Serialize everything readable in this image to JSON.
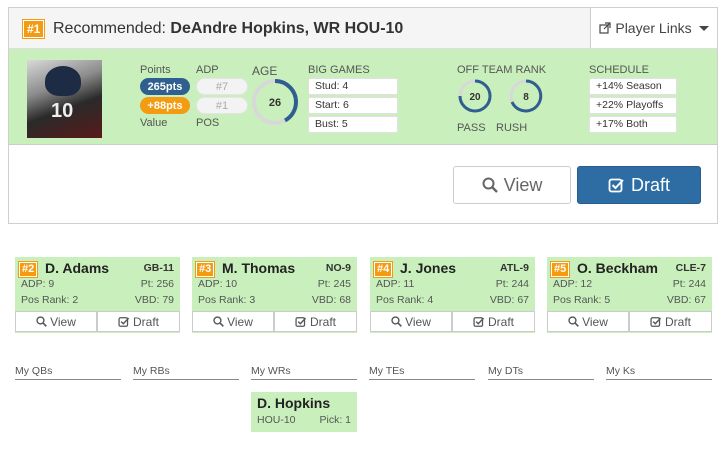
{
  "recommended": {
    "rank": "#1",
    "prefix": "Recommended:",
    "player": "DeAndre Hopkins, WR HOU-10",
    "player_links_label": "Player Links",
    "jersey": "10",
    "labels": {
      "points": "Points",
      "value": "Value",
      "adp": "ADP",
      "pos": "POS",
      "age": "AGE",
      "big_games": "BIG GAMES",
      "off_team_rank": "OFF TEAM RANK",
      "pass": "PASS",
      "rush": "RUSH",
      "schedule": "SCHEDULE"
    },
    "points": "265pts",
    "value": "+88pts",
    "adp": "#7",
    "pos": "#1",
    "age": "26",
    "big_games": [
      "Stud: 4",
      "Start: 6",
      "Bust: 5"
    ],
    "pass_rank": "20",
    "rush_rank": "8",
    "schedule": [
      "+14% Season",
      "+22% Playoffs",
      "+17% Both"
    ],
    "view_label": "View",
    "draft_label": "Draft"
  },
  "suggestions": [
    {
      "rank": "#2",
      "name": "D. Adams",
      "team": "GB-11",
      "adp": "ADP: 9",
      "pt": "Pt: 256",
      "pos_rank": "Pos Rank: 2",
      "vbd": "VBD: 79",
      "view": "View",
      "draft": "Draft"
    },
    {
      "rank": "#3",
      "name": "M. Thomas",
      "team": "NO-9",
      "adp": "ADP: 10",
      "pt": "Pt: 245",
      "pos_rank": "Pos Rank: 3",
      "vbd": "VBD: 68",
      "view": "View",
      "draft": "Draft"
    },
    {
      "rank": "#4",
      "name": "J. Jones",
      "team": "ATL-9",
      "adp": "ADP: 11",
      "pt": "Pt: 244",
      "pos_rank": "Pos Rank: 4",
      "vbd": "VBD: 67",
      "view": "View",
      "draft": "Draft"
    },
    {
      "rank": "#5",
      "name": "O. Beckham",
      "team": "CLE-7",
      "adp": "ADP: 12",
      "pt": "Pt: 244",
      "pos_rank": "Pos Rank: 5",
      "vbd": "VBD: 67",
      "view": "View",
      "draft": "Draft"
    }
  ],
  "roster": {
    "slots": [
      "My QBs",
      "My RBs",
      "My WRs",
      "My TEs",
      "My DTs",
      "My Ks"
    ],
    "wr_pick": {
      "name": "D. Hopkins",
      "team": "HOU-10",
      "pick": "Pick: 1"
    }
  },
  "colors": {
    "accent": "#2e6da4",
    "highlight": "#c9f0bc",
    "badge": "#f39c12"
  }
}
